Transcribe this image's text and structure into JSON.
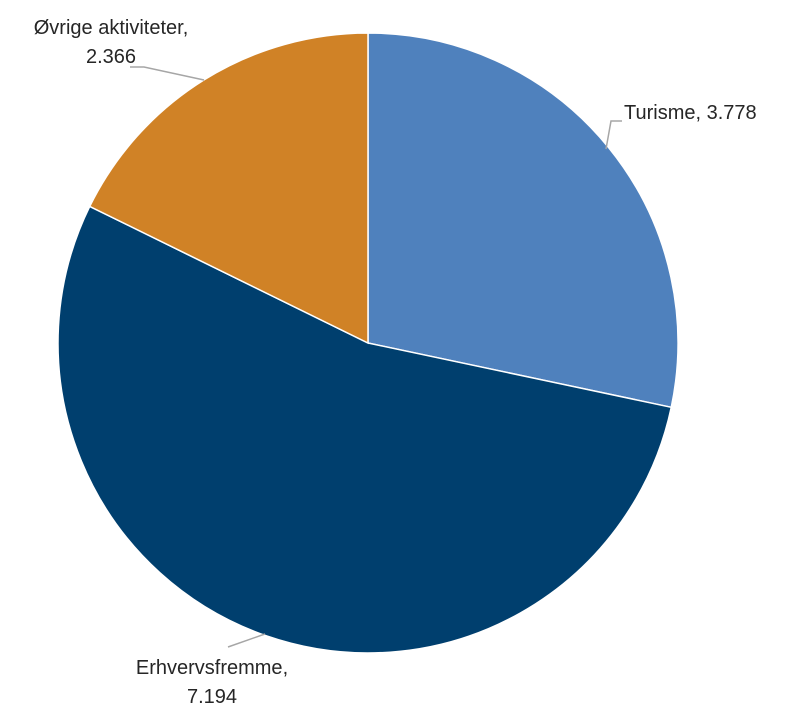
{
  "chart_data": {
    "type": "pie",
    "title": "",
    "slices": [
      {
        "label": "Turisme",
        "value": 3778,
        "value_text": "3.778",
        "color": "#4f81bd"
      },
      {
        "label": "Erhvervsfremme",
        "value": 7194,
        "value_text": "7.194",
        "color": "#003f6e"
      },
      {
        "label": "Øvrige aktiviteter",
        "value": 2366,
        "value_text": "2.366",
        "color": "#d08226"
      }
    ],
    "start_angle_deg": 0,
    "direction": "clockwise",
    "legend": "none"
  }
}
